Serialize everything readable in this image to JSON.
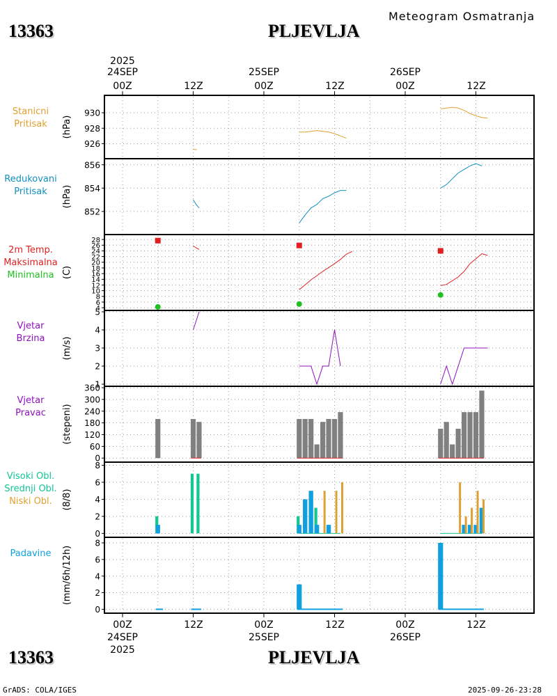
{
  "header": {
    "station_id": "13363",
    "station_name": "PLJEVLJA",
    "subtitle": "Meteogram Osmatranja",
    "top_time": [
      "2025",
      "24SEP",
      "25SEP",
      "26SEP",
      "00Z",
      "12Z"
    ],
    "bottom_time": [
      "2025",
      "24SEP",
      "25SEP",
      "26SEP",
      "00Z",
      "12Z"
    ]
  },
  "footer": {
    "left": "GrADS: COLA/IGES",
    "right": "2025-09-26-23:28"
  },
  "colors": {
    "pressure": "#e0a030",
    "reduced": "#1090c0",
    "tmax": "#e02020",
    "tmin": "#20c020",
    "wind": "#9010c0",
    "dir_bar": "#808080",
    "high_cloud": "#10c890",
    "mid_cloud": "#10a0e0",
    "low_cloud": "#e0a030",
    "precip": "#10a0e0"
  },
  "chart_data": [
    {
      "id": "p1",
      "type": "line",
      "label": [
        "Stanicni",
        "Pritisak"
      ],
      "ylabel": "(hPa)",
      "ylim": [
        924.6,
        931.8
      ],
      "yticks": [
        926,
        928,
        930
      ],
      "series": [
        {
          "name": "Stanicni Pritisak",
          "segments": [
            [
              [
                12,
                925.3
              ],
              [
                12.6,
                925.2
              ]
            ],
            [
              [
                30,
                927.5
              ],
              [
                31,
                927.5
              ],
              [
                32,
                927.6
              ],
              [
                33,
                927.7
              ],
              [
                34,
                927.6
              ],
              [
                35,
                927.5
              ],
              [
                36,
                927.3
              ],
              [
                37,
                927.0
              ],
              [
                38,
                926.7
              ]
            ],
            [
              [
                54,
                930.5
              ],
              [
                55,
                930.6
              ],
              [
                56,
                930.7
              ],
              [
                57,
                930.6
              ],
              [
                58,
                930.3
              ],
              [
                59,
                929.9
              ],
              [
                60,
                929.6
              ],
              [
                61,
                929.4
              ],
              [
                62,
                929.3
              ]
            ]
          ]
        }
      ]
    },
    {
      "id": "p2",
      "type": "line",
      "label": [
        "Redukovani",
        "Pritisak"
      ],
      "ylabel": "(hPa)",
      "ylim": [
        850.2,
        856.4
      ],
      "yticks": [
        852,
        854,
        856
      ],
      "series": [
        {
          "name": "Redukovani Pritisak",
          "segments": [
            [
              [
                12,
                853.0
              ],
              [
                12.5,
                852.6
              ],
              [
                13,
                852.3
              ]
            ],
            [
              [
                30,
                851.0
              ],
              [
                31,
                851.7
              ],
              [
                32,
                852.3
              ],
              [
                33,
                852.6
              ],
              [
                34,
                853.1
              ],
              [
                35,
                853.3
              ],
              [
                36,
                853.6
              ],
              [
                37,
                853.8
              ],
              [
                38,
                853.8
              ]
            ],
            [
              [
                54,
                854.0
              ],
              [
                55,
                854.3
              ],
              [
                56,
                854.8
              ],
              [
                57,
                855.3
              ],
              [
                58,
                855.6
              ],
              [
                59,
                855.9
              ],
              [
                60,
                856.1
              ],
              [
                61,
                855.9
              ]
            ]
          ]
        }
      ]
    },
    {
      "id": "p3",
      "type": "line",
      "label": [
        "2m Temp.",
        "Maksimalna",
        "Minimalna"
      ],
      "ylabel": "(C)",
      "ylim": [
        3.8,
        29.0
      ],
      "yticks": [
        4,
        6,
        8,
        10,
        12,
        14,
        16,
        18,
        20,
        22,
        24,
        26,
        28
      ],
      "series": [
        {
          "name": "2m Temp.",
          "segments": [
            [
              [
                12,
                25.7
              ],
              [
                13,
                24.5
              ]
            ],
            [
              [
                30,
                10.3
              ],
              [
                32,
                13.8
              ],
              [
                34,
                16.8
              ],
              [
                36,
                19.5
              ],
              [
                37,
                21.0
              ],
              [
                38,
                22.8
              ],
              [
                39,
                23.8
              ]
            ],
            [
              [
                54,
                11.8
              ],
              [
                55,
                12.2
              ],
              [
                57,
                14.8
              ],
              [
                58,
                16.8
              ],
              [
                59,
                19.5
              ],
              [
                60,
                21.2
              ],
              [
                61,
                23.0
              ],
              [
                62,
                22.4
              ]
            ]
          ]
        }
      ],
      "markers_max": [
        [
          6,
          27.6
        ],
        [
          30,
          25.9
        ],
        [
          54,
          24.0
        ]
      ],
      "markers_min": [
        [
          6,
          4.3
        ],
        [
          30,
          5.3
        ],
        [
          54,
          8.5
        ]
      ]
    },
    {
      "id": "p4",
      "type": "line",
      "label": [
        "Vjetar",
        "Brzina"
      ],
      "ylabel": "(m/s)",
      "ylim": [
        1.0,
        5.0
      ],
      "yticks": [
        1,
        2,
        3,
        4,
        5
      ],
      "series": [
        {
          "name": "Vjetar Brzina",
          "segments": [
            [
              [
                12,
                4.0
              ],
              [
                13,
                5.0
              ]
            ],
            [
              [
                30,
                2.0
              ],
              [
                32,
                2.0
              ],
              [
                33,
                1.0
              ],
              [
                34,
                2.0
              ],
              [
                35,
                2.0
              ],
              [
                36,
                4.0
              ],
              [
                37,
                2.0
              ]
            ],
            [
              [
                54,
                1.0
              ],
              [
                55,
                2.0
              ],
              [
                56,
                1.0
              ],
              [
                58,
                3.0
              ],
              [
                62,
                3.0
              ]
            ]
          ]
        }
      ]
    },
    {
      "id": "p5",
      "type": "bar",
      "label": [
        "Vjetar",
        "Pravac"
      ],
      "ylabel": "(stepeni)",
      "ylim": [
        -10,
        360
      ],
      "yticks": [
        0,
        60,
        120,
        180,
        240,
        300,
        360
      ],
      "bars": [
        {
          "x": 6,
          "v": 200
        },
        {
          "x": 12,
          "v": 200
        },
        {
          "x": 13,
          "v": 185
        },
        {
          "x": 30,
          "v": 200
        },
        {
          "x": 31,
          "v": 200
        },
        {
          "x": 32,
          "v": 200
        },
        {
          "x": 33,
          "v": 70
        },
        {
          "x": 34,
          "v": 185
        },
        {
          "x": 35,
          "v": 200
        },
        {
          "x": 36,
          "v": 200
        },
        {
          "x": 37,
          "v": 235
        },
        {
          "x": 54,
          "v": 150
        },
        {
          "x": 55,
          "v": 185
        },
        {
          "x": 56,
          "v": 70
        },
        {
          "x": 57,
          "v": 150
        },
        {
          "x": 58,
          "v": 235
        },
        {
          "x": 59,
          "v": 235
        },
        {
          "x": 60,
          "v": 235
        },
        {
          "x": 61,
          "v": 345
        }
      ],
      "baseline": [
        [
          12,
          13
        ],
        [
          30,
          37
        ],
        [
          54,
          61
        ]
      ]
    },
    {
      "id": "p6",
      "type": "bar",
      "label": [
        "Visoki Obl.",
        "Srednji Obl.",
        "Niski Obl."
      ],
      "ylabel": "(8/8)",
      "ylim": [
        -0.3,
        8.2
      ],
      "yticks": [
        0,
        2,
        4,
        6,
        8
      ],
      "series": [
        {
          "name": "Visoki Obl.",
          "key": "high_cloud",
          "offset": -0.18,
          "width": 0.5,
          "bars": [
            {
              "x": 6,
              "v": 2
            },
            {
              "x": 12,
              "v": 7
            },
            {
              "x": 13,
              "v": 7
            },
            {
              "x": 30,
              "v": 2
            },
            {
              "x": 33,
              "v": 3
            }
          ]
        },
        {
          "name": "Srednji Obl.",
          "key": "mid_cloud",
          "offset": 0,
          "width": 0.75,
          "bars": [
            {
              "x": 6,
              "v": 1
            },
            {
              "x": 30,
              "v": 1
            },
            {
              "x": 31,
              "v": 4
            },
            {
              "x": 32,
              "v": 5
            },
            {
              "x": 33,
              "v": 1
            },
            {
              "x": 35,
              "v": 1
            },
            {
              "x": 58,
              "v": 1
            },
            {
              "x": 59,
              "v": 1
            },
            {
              "x": 60,
              "v": 1
            },
            {
              "x": 61,
              "v": 3
            }
          ]
        },
        {
          "name": "Niski Obl.",
          "key": "low_cloud",
          "offset": 0.3,
          "width": 0.35,
          "bars": [
            {
              "x": 34,
              "v": 5
            },
            {
              "x": 36,
              "v": 5
            },
            {
              "x": 37,
              "v": 6
            },
            {
              "x": 57,
              "v": 6
            },
            {
              "x": 58,
              "v": 2
            },
            {
              "x": 59,
              "v": 3
            },
            {
              "x": 60,
              "v": 5
            },
            {
              "x": 61,
              "v": 4
            }
          ]
        }
      ],
      "baseline": [
        [
          30,
          37
        ],
        [
          54,
          61
        ]
      ]
    },
    {
      "id": "p7",
      "type": "bar",
      "label": [
        "Padavine"
      ],
      "ylabel": "(mm/6h/12h)",
      "ylim": [
        -0.3,
        8.5
      ],
      "yticks": [
        0,
        2,
        4,
        6,
        8
      ],
      "bars": [
        {
          "x": 30,
          "v": 3
        },
        {
          "x": 54,
          "v": 8
        }
      ],
      "baseline": [
        [
          6,
          6.5
        ],
        [
          12,
          13
        ],
        [
          30,
          37
        ],
        [
          54,
          61
        ]
      ]
    }
  ]
}
